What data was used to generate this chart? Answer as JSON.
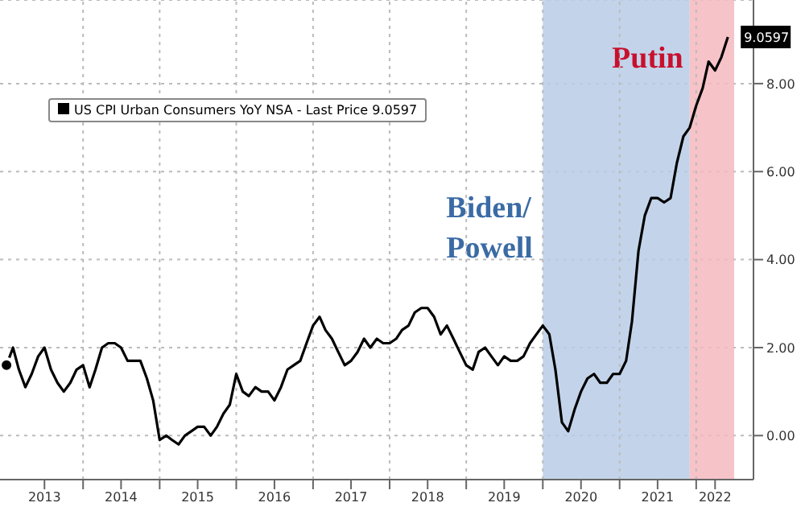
{
  "chart_data": {
    "type": "line",
    "x": [
      "2013-01",
      "2013-02",
      "2013-03",
      "2013-04",
      "2013-05",
      "2013-06",
      "2013-07",
      "2013-08",
      "2013-09",
      "2013-10",
      "2013-11",
      "2013-12",
      "2014-01",
      "2014-02",
      "2014-03",
      "2014-04",
      "2014-05",
      "2014-06",
      "2014-07",
      "2014-08",
      "2014-09",
      "2014-10",
      "2014-11",
      "2014-12",
      "2015-01",
      "2015-02",
      "2015-03",
      "2015-04",
      "2015-05",
      "2015-06",
      "2015-07",
      "2015-08",
      "2015-09",
      "2015-10",
      "2015-11",
      "2015-12",
      "2016-01",
      "2016-02",
      "2016-03",
      "2016-04",
      "2016-05",
      "2016-06",
      "2016-07",
      "2016-08",
      "2016-09",
      "2016-10",
      "2016-11",
      "2016-12",
      "2017-01",
      "2017-02",
      "2017-03",
      "2017-04",
      "2017-05",
      "2017-06",
      "2017-07",
      "2017-08",
      "2017-09",
      "2017-10",
      "2017-11",
      "2017-12",
      "2018-01",
      "2018-02",
      "2018-03",
      "2018-04",
      "2018-05",
      "2018-06",
      "2018-07",
      "2018-08",
      "2018-09",
      "2018-10",
      "2018-11",
      "2018-12",
      "2019-01",
      "2019-02",
      "2019-03",
      "2019-04",
      "2019-05",
      "2019-06",
      "2019-07",
      "2019-08",
      "2019-09",
      "2019-10",
      "2019-11",
      "2019-12",
      "2020-01",
      "2020-02",
      "2020-03",
      "2020-04",
      "2020-05",
      "2020-06",
      "2020-07",
      "2020-08",
      "2020-09",
      "2020-10",
      "2020-11",
      "2020-12",
      "2021-01",
      "2021-02",
      "2021-03",
      "2021-04",
      "2021-05",
      "2021-06",
      "2021-07",
      "2021-08",
      "2021-09",
      "2021-10",
      "2021-11",
      "2021-12",
      "2022-01",
      "2022-02",
      "2022-03",
      "2022-04",
      "2022-05",
      "2022-06"
    ],
    "series": [
      {
        "name": "US CPI Urban Consumers YoY NSA - Last Price 9.0597",
        "color": "#000000",
        "values": [
          1.6,
          2.0,
          1.5,
          1.1,
          1.4,
          1.8,
          2.0,
          1.5,
          1.2,
          1.0,
          1.2,
          1.5,
          1.6,
          1.1,
          1.5,
          2.0,
          2.1,
          2.1,
          2.0,
          1.7,
          1.7,
          1.7,
          1.3,
          0.8,
          -0.1,
          0.0,
          -0.1,
          -0.2,
          0.0,
          0.1,
          0.2,
          0.2,
          0.0,
          0.2,
          0.5,
          0.7,
          1.4,
          1.0,
          0.9,
          1.1,
          1.0,
          1.0,
          0.8,
          1.1,
          1.5,
          1.6,
          1.7,
          2.1,
          2.5,
          2.7,
          2.4,
          2.2,
          1.9,
          1.6,
          1.7,
          1.9,
          2.2,
          2.0,
          2.2,
          2.1,
          2.1,
          2.2,
          2.4,
          2.5,
          2.8,
          2.9,
          2.9,
          2.7,
          2.3,
          2.5,
          2.2,
          1.9,
          1.6,
          1.5,
          1.9,
          2.0,
          1.8,
          1.6,
          1.8,
          1.7,
          1.7,
          1.8,
          2.1,
          2.3,
          2.5,
          2.3,
          1.5,
          0.3,
          0.1,
          0.6,
          1.0,
          1.3,
          1.4,
          1.2,
          1.2,
          1.4,
          1.4,
          1.7,
          2.6,
          4.2,
          5.0,
          5.4,
          5.4,
          5.3,
          5.4,
          6.2,
          6.8,
          7.0,
          7.5,
          7.9,
          8.5,
          8.3,
          8.6,
          9.0597
        ]
      }
    ],
    "xlim": [
      "2012-12",
      "2022-10"
    ],
    "xticks": [
      {
        "value": "2013-07",
        "label": "2013"
      },
      {
        "value": "2014-07",
        "label": "2014"
      },
      {
        "value": "2015-07",
        "label": "2015"
      },
      {
        "value": "2016-07",
        "label": "2016"
      },
      {
        "value": "2017-07",
        "label": "2017"
      },
      {
        "value": "2018-07",
        "label": "2018"
      },
      {
        "value": "2019-07",
        "label": "2019"
      },
      {
        "value": "2020-07",
        "label": "2020"
      },
      {
        "value": "2021-07",
        "label": "2021"
      },
      {
        "value": "2022-04",
        "label": "2022"
      },
      {
        "value": "2014-01",
        "label": null
      },
      {
        "value": "2015-01",
        "label": null
      },
      {
        "value": "2016-01",
        "label": null
      },
      {
        "value": "2017-01",
        "label": null
      },
      {
        "value": "2018-01",
        "label": null
      },
      {
        "value": "2019-01",
        "label": null
      },
      {
        "value": "2020-01",
        "label": null
      },
      {
        "value": "2021-01",
        "label": null
      },
      {
        "value": "2022-01",
        "label": null
      }
    ],
    "ylim": [
      -1,
      9.9
    ],
    "yticks": [
      {
        "value": 0,
        "label": "0.00"
      },
      {
        "value": 2,
        "label": "2.00"
      },
      {
        "value": 4,
        "label": "4.00"
      },
      {
        "value": 6,
        "label": "6.00"
      },
      {
        "value": 8,
        "label": "8.00"
      }
    ],
    "bands": [
      {
        "axis": "x",
        "from": "2020-01",
        "to": "2021-12",
        "label": "Biden/\nPowell",
        "color": "#b9cde6"
      },
      {
        "axis": "x",
        "from": "2021-12",
        "to": "2022-07",
        "label": "Putin",
        "color": "#f5b8bf"
      }
    ],
    "annotations": [
      {
        "text": "9.0597",
        "x": "2022-06",
        "y": 9.0597
      }
    ],
    "grid": true,
    "legend": "top left",
    "marker": "none",
    "line_style": "solid"
  }
}
